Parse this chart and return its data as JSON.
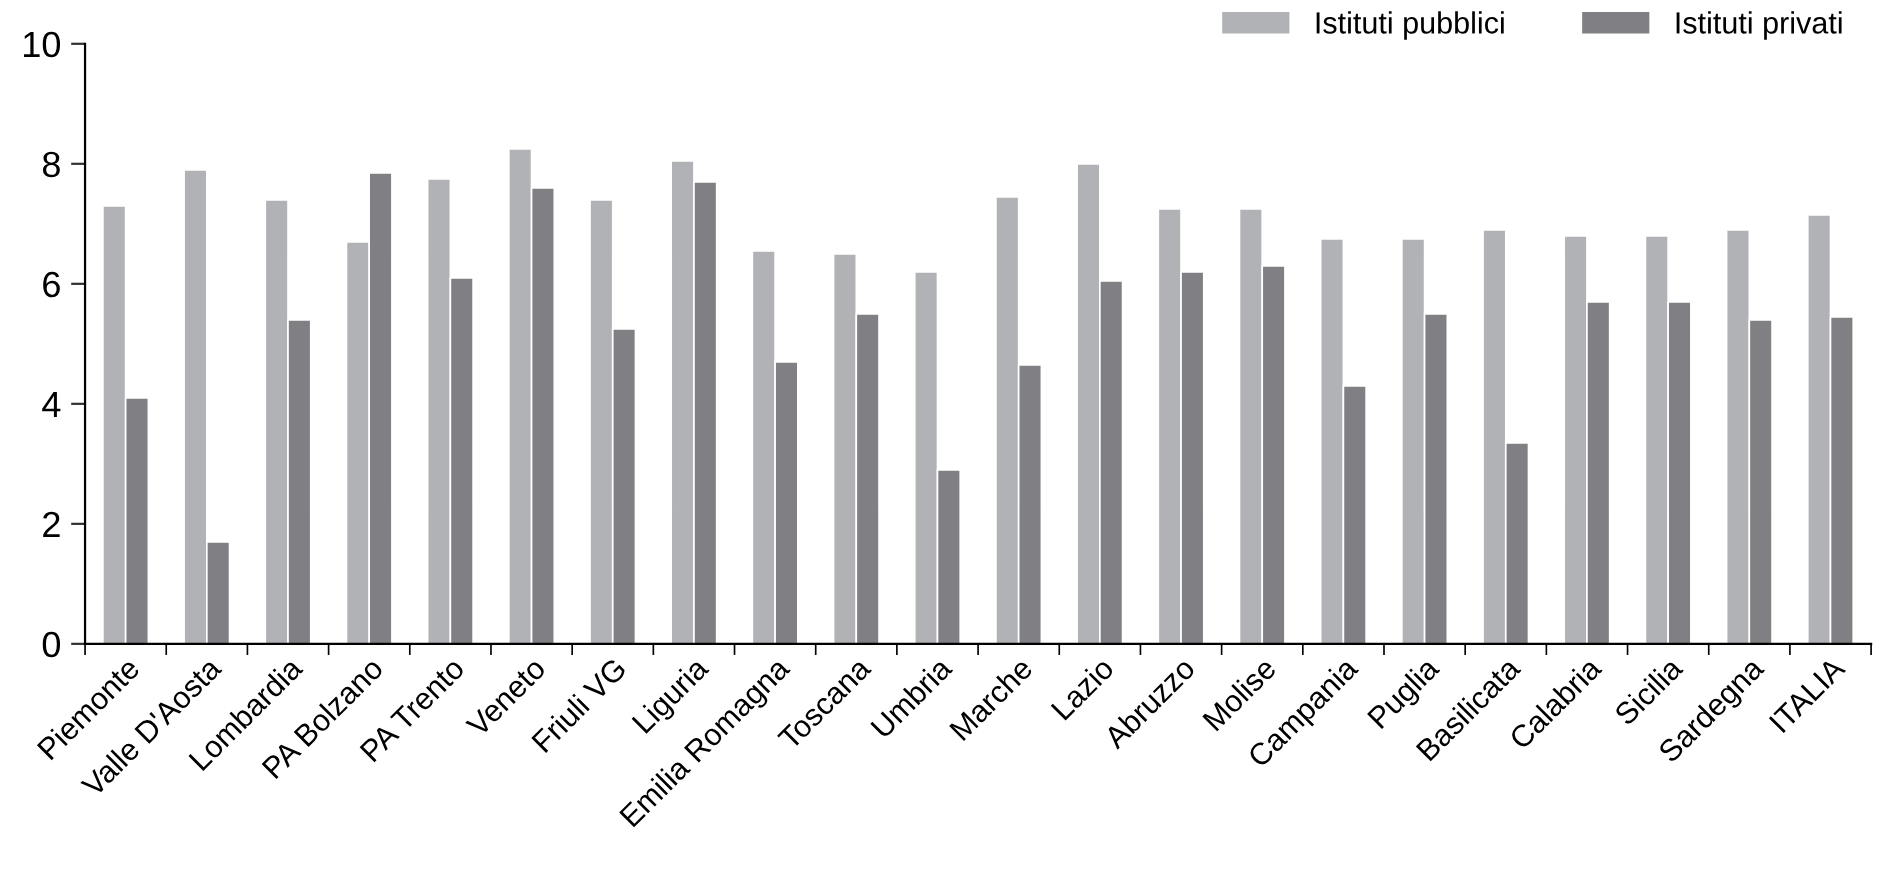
{
  "chart_data": {
    "type": "bar",
    "categories": [
      "Piemonte",
      "Valle D'Aosta",
      "Lombardia",
      "PA Bolzano",
      "PA Trento",
      "Veneto",
      "Friuli VG",
      "Liguria",
      "Emilia Romagna",
      "Toscana",
      "Umbria",
      "Marche",
      "Lazio",
      "Abruzzo",
      "Molise",
      "Campania",
      "Puglia",
      "Basilicata",
      "Calabria",
      "Sicilia",
      "Sardegna",
      "ITALIA"
    ],
    "series": [
      {
        "name": "Istituti pubblici",
        "color": "#b1b2b5",
        "values": [
          7.3,
          7.9,
          7.4,
          6.7,
          7.75,
          8.25,
          7.4,
          8.05,
          6.55,
          6.5,
          6.2,
          7.45,
          8.0,
          7.25,
          7.25,
          6.75,
          6.75,
          6.9,
          6.8,
          6.8,
          6.9,
          7.15
        ]
      },
      {
        "name": "Istituti privati",
        "color": "#808084",
        "values": [
          4.1,
          1.7,
          5.4,
          7.85,
          6.1,
          7.6,
          5.25,
          7.7,
          4.7,
          5.5,
          2.9,
          4.65,
          6.05,
          6.2,
          6.3,
          4.3,
          5.5,
          3.35,
          5.7,
          5.7,
          5.4,
          5.45
        ]
      }
    ],
    "ylim": [
      0,
      10
    ],
    "yticks": [
      0,
      2,
      4,
      6,
      8,
      10
    ],
    "grid": false,
    "legend": "top right"
  }
}
